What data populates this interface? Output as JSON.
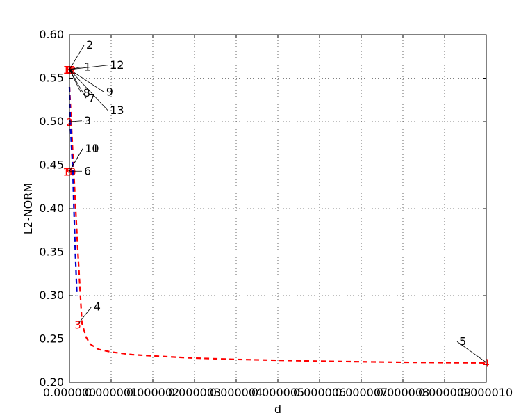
{
  "chart_data": {
    "type": "line",
    "title": "",
    "xlabel": "d",
    "ylabel": "L2-NORM",
    "xlim": [
      0.0,
      1e-05
    ],
    "ylim": [
      0.2,
      0.6
    ],
    "grid": true,
    "x_ticks": [
      0.0,
      1e-06,
      2e-06,
      3e-06,
      4e-06,
      5e-06,
      6e-06,
      7e-06,
      8e-06,
      9e-06,
      1e-05
    ],
    "x_tick_labels": [
      "0.000000",
      "0.000001",
      "0.000002",
      "0.000003",
      "0.000004",
      "0.000005",
      "0.000006",
      "0.000007",
      "0.000008",
      "0.000009",
      "0.000010"
    ],
    "y_ticks": [
      0.2,
      0.25,
      0.3,
      0.35,
      0.4,
      0.45,
      0.5,
      0.55,
      0.6
    ],
    "y_tick_labels": [
      "0.20",
      "0.25",
      "0.30",
      "0.35",
      "0.40",
      "0.45",
      "0.50",
      "0.55",
      "0.60"
    ],
    "series": [
      {
        "color": "#ff0000",
        "style": "dashed",
        "x": [
          0.0,
          1e-07,
          2e-07,
          3e-07,
          4e-07,
          5e-07,
          7e-07,
          1e-06,
          1.5e-06,
          2e-06,
          3e-06,
          4e-06,
          5e-06,
          6e-06,
          7e-06,
          8e-06,
          9e-06,
          1e-05
        ],
        "y": [
          0.54,
          0.445,
          0.352,
          0.268,
          0.252,
          0.244,
          0.238,
          0.235,
          0.232,
          0.2305,
          0.228,
          0.2265,
          0.2255,
          0.2245,
          0.2238,
          0.2232,
          0.2228,
          0.2225
        ]
      },
      {
        "color": "#0000cc",
        "style": "dashed",
        "x": [
          0.0,
          2e-08,
          5e-08,
          8e-08,
          1e-07,
          1.4e-07,
          1.8e-07
        ],
        "y": [
          0.54,
          0.5,
          0.47,
          0.445,
          0.41,
          0.35,
          0.3
        ]
      }
    ],
    "markers": [
      {
        "label": "0",
        "x": 0.0,
        "y": 0.56,
        "annotation": "1",
        "text_x": 3.5e-07,
        "text_y": 0.559
      },
      {
        "label": "1",
        "x": 0.0,
        "y": 0.56,
        "annotation": "2",
        "text_x": 4e-07,
        "text_y": 0.584
      },
      {
        "label": "2",
        "x": 0.0,
        "y": 0.5,
        "annotation": "3",
        "text_x": 3.5e-07,
        "text_y": 0.497
      },
      {
        "label": "3",
        "x": 2e-07,
        "y": 0.267,
        "annotation": "4",
        "text_x": 5.8e-07,
        "text_y": 0.283
      },
      {
        "label": "4",
        "x": 1e-05,
        "y": 0.223,
        "annotation": "5",
        "text_x": 9.35e-06,
        "text_y": 0.243
      },
      {
        "label": "5",
        "x": 0.0,
        "y": 0.443,
        "annotation": "6",
        "text_x": 3.5e-07,
        "text_y": 0.439
      },
      {
        "label": "6",
        "x": 0.0,
        "y": 0.56,
        "annotation": "7",
        "text_x": 4.5e-07,
        "text_y": 0.523
      },
      {
        "label": "7",
        "x": 0.0,
        "y": 0.56,
        "annotation": "8",
        "text_x": 3.3e-07,
        "text_y": 0.529
      },
      {
        "label": "8",
        "x": 0.0,
        "y": 0.56,
        "annotation": "9",
        "text_x": 8.8e-07,
        "text_y": 0.53
      },
      {
        "label": "9",
        "x": 0.0,
        "y": 0.443,
        "annotation": "10",
        "text_x": 3.7e-07,
        "text_y": 0.465
      },
      {
        "label": "10",
        "x": 0.0,
        "y": 0.443,
        "annotation": "11",
        "text_x": 3.7e-07,
        "text_y": 0.465
      },
      {
        "label": "11",
        "x": 0.0,
        "y": 0.56,
        "annotation": "12",
        "text_x": 9.7e-07,
        "text_y": 0.561
      },
      {
        "label": "12",
        "x": 0.0,
        "y": 0.56,
        "annotation": "13",
        "text_x": 9.7e-07,
        "text_y": 0.509
      }
    ]
  }
}
